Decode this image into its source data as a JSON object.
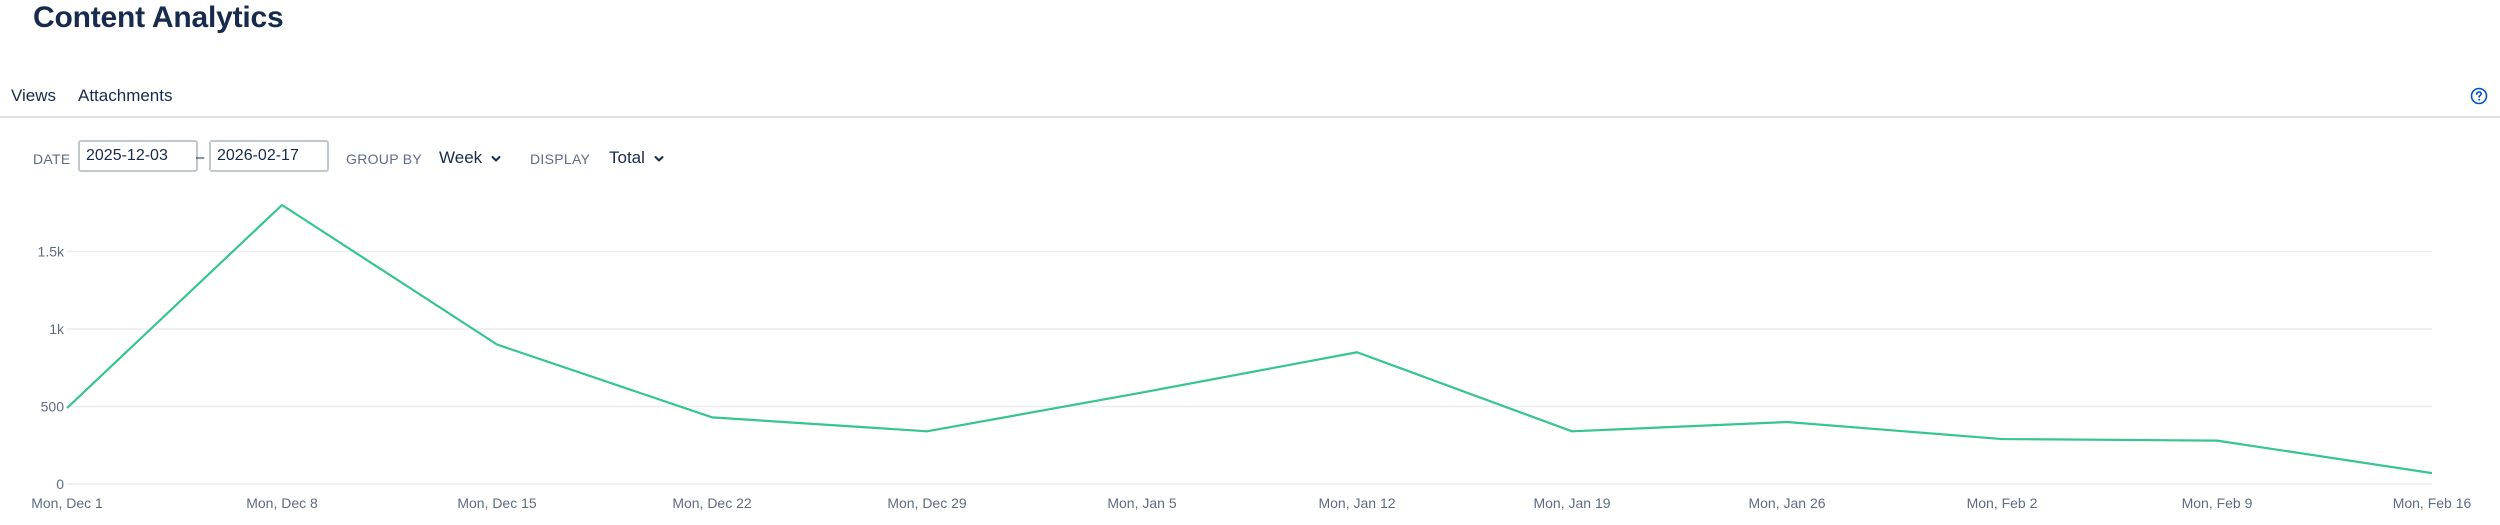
{
  "page": {
    "title": "Content Analytics"
  },
  "tabs": [
    {
      "label": "Views"
    },
    {
      "label": "Attachments"
    }
  ],
  "filters": {
    "date_label": "DATE",
    "date_start": "2025-12-03",
    "date_separator": "–",
    "date_end": "2026-02-17",
    "group_by_label": "GROUP BY",
    "group_by_value": "Week",
    "display_label": "DISPLAY",
    "display_value": "Total"
  },
  "icons": {
    "help": "help-icon",
    "chevron": "chevron-down-icon"
  },
  "colors": {
    "line": "#36c58f",
    "grid": "#ebecf0",
    "text": "#172b4d",
    "muted": "#5e6c84",
    "accent": "#0052cc"
  },
  "chart_data": {
    "type": "line",
    "categories": [
      "Mon, Dec 1",
      "Mon, Dec 8",
      "Mon, Dec 15",
      "Mon, Dec 22",
      "Mon, Dec 29",
      "Mon, Jan 5",
      "Mon, Jan 12",
      "Mon, Jan 19",
      "Mon, Jan 26",
      "Mon, Feb 2",
      "Mon, Feb 9",
      "Mon, Feb 16"
    ],
    "series": [
      {
        "values": [
          490,
          1800,
          900,
          430,
          340,
          590,
          850,
          340,
          400,
          290,
          280,
          70
        ]
      }
    ],
    "yticks": [
      {
        "value": 0,
        "label": "0"
      },
      {
        "value": 500,
        "label": "500"
      },
      {
        "value": 1000,
        "label": "1k"
      },
      {
        "value": 1500,
        "label": "1.5k"
      }
    ],
    "ylim": [
      0,
      1800
    ],
    "grid": true,
    "legend": "none",
    "title": "",
    "xlabel": "",
    "ylabel": ""
  }
}
